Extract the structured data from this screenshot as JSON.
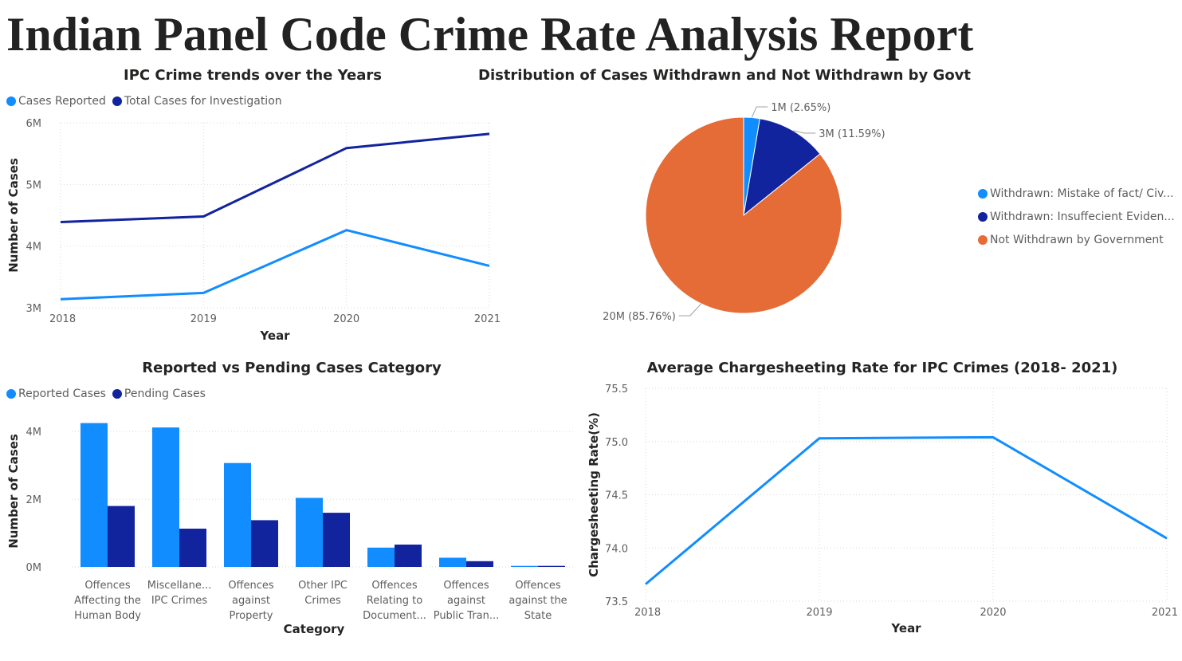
{
  "report_title": "Indian Panel Code Crime Rate Analysis Report",
  "colors": {
    "light_blue": "#118DFF",
    "dark_blue": "#12239E",
    "orange": "#E66C37",
    "axis_text": "#605e5c",
    "grid": "#d9d9d9"
  },
  "chart_data": [
    {
      "id": "trend",
      "type": "line",
      "title": "IPC Crime trends over the Years",
      "xlabel": "Year",
      "ylabel": "Number of Cases",
      "x": [
        "2018",
        "2019",
        "2020",
        "2021"
      ],
      "ylim": [
        3000000,
        6000000
      ],
      "yticks": [
        {
          "v": 3000000,
          "label": "3M"
        },
        {
          "v": 4000000,
          "label": "4M"
        },
        {
          "v": 5000000,
          "label": "5M"
        },
        {
          "v": 6000000,
          "label": "6M"
        }
      ],
      "legend_position": "top-left",
      "series": [
        {
          "name": "Cases Reported",
          "color": "#118DFF",
          "values": [
            3140000,
            3240000,
            4260000,
            3680000
          ]
        },
        {
          "name": "Total Cases for Investigation",
          "color": "#12239E",
          "values": [
            4390000,
            4480000,
            5590000,
            5820000
          ]
        }
      ]
    },
    {
      "id": "pie",
      "type": "pie",
      "title": "Distribution of Cases Withdrawn and Not Withdrawn by Govt",
      "legend_position": "right",
      "slices": [
        {
          "name": "Withdrawn: Mistake of fact/ Civ...",
          "value": 2.65,
          "label": "1M (2.65%)",
          "color": "#118DFF"
        },
        {
          "name": "Withdrawn: Insuffecient Eviden...",
          "value": 11.59,
          "label": "3M (11.59%)",
          "color": "#12239E"
        },
        {
          "name": "Not Withdrawn by Government",
          "value": 85.76,
          "label": "20M (85.76%)",
          "color": "#E66C37"
        }
      ]
    },
    {
      "id": "category",
      "type": "bar",
      "title": "Reported vs Pending Cases Category",
      "xlabel": "Category",
      "ylabel": "Number of Cases",
      "ylim": [
        0,
        4500000
      ],
      "yticks": [
        {
          "v": 0,
          "label": "0M"
        },
        {
          "v": 2000000,
          "label": "2M"
        },
        {
          "v": 4000000,
          "label": "4M"
        }
      ],
      "legend_position": "top-left",
      "categories": [
        [
          "Offences",
          "Affecting the",
          "Human Body"
        ],
        [
          "Miscellane...",
          "IPC Crimes"
        ],
        [
          "Offences",
          "against",
          "Property"
        ],
        [
          "Other IPC",
          "Crimes"
        ],
        [
          "Offences",
          "Relating to",
          "Document..."
        ],
        [
          "Offences",
          "against",
          "Public Tran..."
        ],
        [
          "Offences",
          "against the",
          "State"
        ]
      ],
      "series": [
        {
          "name": "Reported Cases",
          "color": "#118DFF",
          "values": [
            4250000,
            4120000,
            3070000,
            2040000,
            570000,
            270000,
            30000
          ]
        },
        {
          "name": "Pending Cases",
          "color": "#12239E",
          "values": [
            1800000,
            1130000,
            1380000,
            1600000,
            660000,
            170000,
            30000
          ]
        }
      ]
    },
    {
      "id": "chargesheet",
      "type": "line",
      "title": "Average Chargesheeting Rate for IPC Crimes (2018- 2021)",
      "xlabel": "Year",
      "ylabel": "Chargesheeting Rate(%)",
      "x": [
        "2018",
        "2019",
        "2020",
        "2021"
      ],
      "ylim": [
        73.5,
        75.5
      ],
      "yticks": [
        {
          "v": 73.5,
          "label": "73.5"
        },
        {
          "v": 74.0,
          "label": "74.0"
        },
        {
          "v": 74.5,
          "label": "74.5"
        },
        {
          "v": 75.0,
          "label": "75.0"
        },
        {
          "v": 75.5,
          "label": "75.5"
        }
      ],
      "series": [
        {
          "color": "#118DFF",
          "values": [
            73.66,
            75.03,
            75.04,
            74.09
          ]
        }
      ]
    }
  ]
}
